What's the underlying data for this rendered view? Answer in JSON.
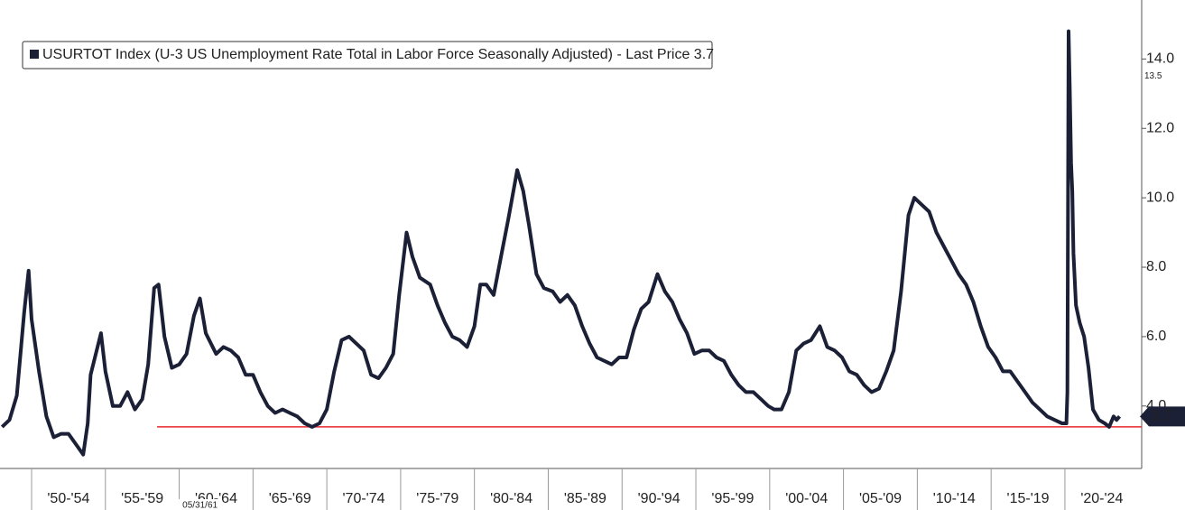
{
  "chart_data": {
    "type": "line",
    "series": [
      {
        "name": "USURTOT Index (U-3 US Unemployment Rate Total in Labor Force Seasonally Adjusted) - Last Price 3.7",
        "color": "#1b2036",
        "x": [
          1948.0,
          1948.5,
          1949.0,
          1949.5,
          1949.8,
          1950.0,
          1950.5,
          1951.0,
          1951.5,
          1952.0,
          1952.5,
          1953.0,
          1953.5,
          1953.8,
          1954.0,
          1954.7,
          1955.0,
          1955.5,
          1956.0,
          1956.5,
          1957.0,
          1957.5,
          1957.9,
          1958.3,
          1958.6,
          1959.0,
          1959.5,
          1960.0,
          1960.5,
          1961.0,
          1961.4,
          1961.8,
          1962.5,
          1963.0,
          1963.5,
          1964.0,
          1964.5,
          1965.0,
          1965.5,
          1966.0,
          1966.5,
          1967.0,
          1967.5,
          1968.0,
          1968.5,
          1969.0,
          1969.5,
          1970.0,
          1970.5,
          1971.0,
          1971.5,
          1972.0,
          1972.5,
          1973.0,
          1973.5,
          1974.0,
          1974.5,
          1974.9,
          1975.4,
          1975.8,
          1976.3,
          1977.0,
          1977.5,
          1978.0,
          1978.5,
          1979.0,
          1979.5,
          1980.0,
          1980.4,
          1980.8,
          1981.3,
          1981.8,
          1982.3,
          1982.9,
          1983.3,
          1983.7,
          1984.2,
          1984.7,
          1985.3,
          1985.8,
          1986.3,
          1986.8,
          1987.3,
          1987.8,
          1988.3,
          1988.8,
          1989.3,
          1989.8,
          1990.3,
          1990.8,
          1991.3,
          1991.8,
          1992.4,
          1992.9,
          1993.4,
          1993.9,
          1994.4,
          1994.9,
          1995.4,
          1995.9,
          1996.4,
          1996.9,
          1997.4,
          1997.9,
          1998.4,
          1998.9,
          1999.4,
          1999.9,
          2000.3,
          2000.8,
          2001.3,
          2001.8,
          2002.3,
          2002.8,
          2003.4,
          2003.9,
          2004.4,
          2004.9,
          2005.4,
          2005.9,
          2006.4,
          2006.9,
          2007.4,
          2007.9,
          2008.4,
          2008.9,
          2009.4,
          2009.8,
          2010.3,
          2010.8,
          2011.3,
          2011.8,
          2012.3,
          2012.8,
          2013.3,
          2013.8,
          2014.3,
          2014.8,
          2015.3,
          2015.8,
          2016.3,
          2016.8,
          2017.3,
          2017.8,
          2018.3,
          2018.8,
          2019.3,
          2019.8,
          2020.1,
          2020.17,
          2020.25,
          2020.33,
          2020.42,
          2020.5,
          2020.58,
          2020.75,
          2021.0,
          2021.3,
          2021.6,
          2021.9,
          2022.3,
          2022.7,
          2023.0,
          2023.3,
          2023.5,
          2023.7
        ],
        "values": [
          3.4,
          3.6,
          4.3,
          6.7,
          7.9,
          6.5,
          5.0,
          3.7,
          3.1,
          3.2,
          3.2,
          2.9,
          2.6,
          3.5,
          4.9,
          6.1,
          5.0,
          4.0,
          4.0,
          4.4,
          3.9,
          4.2,
          5.2,
          7.4,
          7.5,
          6.0,
          5.1,
          5.2,
          5.5,
          6.6,
          7.1,
          6.1,
          5.5,
          5.7,
          5.6,
          5.4,
          4.9,
          4.9,
          4.4,
          4.0,
          3.8,
          3.9,
          3.8,
          3.7,
          3.5,
          3.4,
          3.5,
          3.9,
          5.0,
          5.9,
          6.0,
          5.8,
          5.6,
          4.9,
          4.8,
          5.1,
          5.5,
          7.2,
          9.0,
          8.3,
          7.7,
          7.5,
          6.9,
          6.4,
          6.0,
          5.9,
          5.7,
          6.3,
          7.5,
          7.5,
          7.2,
          8.3,
          9.4,
          10.8,
          10.2,
          9.2,
          7.8,
          7.4,
          7.3,
          7.0,
          7.2,
          6.9,
          6.3,
          5.8,
          5.4,
          5.3,
          5.2,
          5.4,
          5.4,
          6.2,
          6.8,
          7.0,
          7.8,
          7.3,
          7.0,
          6.5,
          6.1,
          5.5,
          5.6,
          5.6,
          5.4,
          5.3,
          4.9,
          4.6,
          4.4,
          4.4,
          4.2,
          4.0,
          3.9,
          3.9,
          4.4,
          5.6,
          5.8,
          5.9,
          6.3,
          5.7,
          5.6,
          5.4,
          5.0,
          4.9,
          4.6,
          4.4,
          4.5,
          5.0,
          5.6,
          7.3,
          9.5,
          10.0,
          9.8,
          9.6,
          9.0,
          8.6,
          8.2,
          7.8,
          7.5,
          7.0,
          6.3,
          5.7,
          5.4,
          5.0,
          5.0,
          4.7,
          4.4,
          4.1,
          3.9,
          3.7,
          3.6,
          3.5,
          3.5,
          4.4,
          14.8,
          13.2,
          11.0,
          10.2,
          8.4,
          6.9,
          6.4,
          6.0,
          5.1,
          3.9,
          3.6,
          3.5,
          3.4,
          3.7,
          3.6,
          3.7
        ]
      }
    ],
    "xlim": [
      1947.86,
      2025.2
    ],
    "xticks": [
      {
        "value": 1950,
        "label": "'50-'54"
      },
      {
        "value": 1955,
        "label": "'55-'59"
      },
      {
        "value": 1960,
        "label": "'60-'64"
      },
      {
        "value": 1965,
        "label": "'65-'69"
      },
      {
        "value": 1970,
        "label": "'70-'74"
      },
      {
        "value": 1975,
        "label": "'75-'79"
      },
      {
        "value": 1980,
        "label": "'80-'84"
      },
      {
        "value": 1985,
        "label": "'85-'89"
      },
      {
        "value": 1990,
        "label": "'90-'94"
      },
      {
        "value": 1995,
        "label": "'95-'99"
      },
      {
        "value": 2000,
        "label": "'00-'04"
      },
      {
        "value": 2005,
        "label": "'05-'09"
      },
      {
        "value": 2010,
        "label": "'10-'14"
      },
      {
        "value": 2015,
        "label": "'15-'19"
      },
      {
        "value": 2020,
        "label": "'20-'24"
      }
    ],
    "ylim": [
      2.2,
      15.7
    ],
    "yticks": [
      {
        "value": 4,
        "label": "4.0"
      },
      {
        "value": 6,
        "label": "6.0"
      },
      {
        "value": 8,
        "label": "8.0"
      },
      {
        "value": 10,
        "label": "10.0"
      },
      {
        "value": 12,
        "label": "12.0"
      },
      {
        "value": 14,
        "label": "14.0"
      }
    ],
    "hline": {
      "value": 3.4,
      "x_start": 1958.5,
      "color": "#e8292b"
    },
    "y_markers": [
      {
        "value": 13.5,
        "label": "13.5"
      },
      {
        "value": 3.7,
        "label": "3.7"
      }
    ],
    "x_marker": {
      "value": 1961.41,
      "label": "05/31/61"
    },
    "legend": "top-left"
  }
}
